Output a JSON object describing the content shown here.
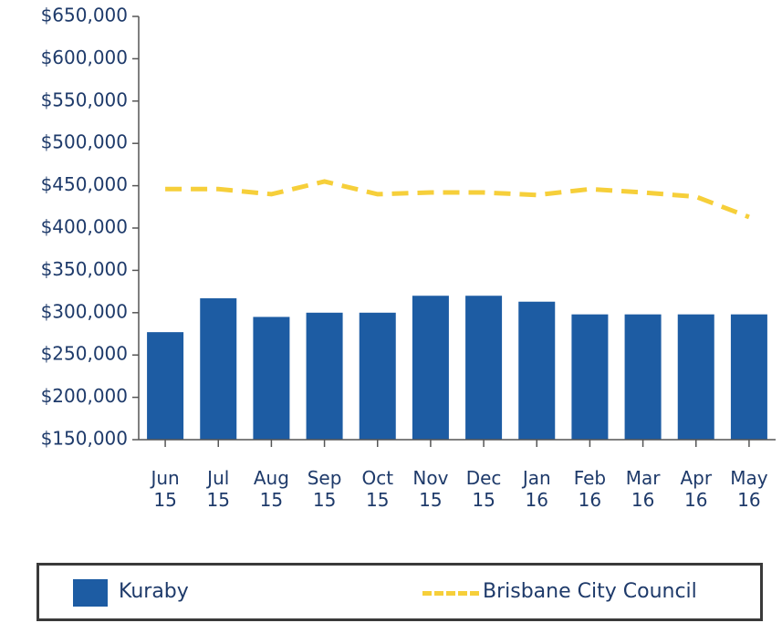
{
  "chart_data": {
    "type": "combo",
    "categories": [
      "Jun 15",
      "Jul 15",
      "Aug 15",
      "Sep 15",
      "Oct 15",
      "Nov 15",
      "Dec 15",
      "Jan 16",
      "Feb 16",
      "Mar 16",
      "Apr 16",
      "May 16"
    ],
    "series": [
      {
        "name": "Kuraby",
        "type": "bar",
        "color": "#1d5ca3",
        "values": [
          277000,
          317000,
          295000,
          300000,
          300000,
          320000,
          320000,
          313000,
          298000,
          298000,
          298000,
          298000
        ]
      },
      {
        "name": "Brisbane City Council",
        "type": "line",
        "dashed": true,
        "color": "#f6cf3a",
        "values": [
          446000,
          446000,
          440000,
          455000,
          440000,
          442000,
          442000,
          439000,
          446000,
          442000,
          437000,
          413000
        ]
      }
    ],
    "ylim": [
      150000,
      650000
    ],
    "yticks": [
      {
        "value": 150000,
        "label": "$150,000"
      },
      {
        "value": 200000,
        "label": "$200,000"
      },
      {
        "value": 250000,
        "label": "$250,000"
      },
      {
        "value": 300000,
        "label": "$300,000"
      },
      {
        "value": 350000,
        "label": "$350,000"
      },
      {
        "value": 400000,
        "label": "$400,000"
      },
      {
        "value": 450000,
        "label": "$450,000"
      },
      {
        "value": 500000,
        "label": "$500,000"
      },
      {
        "value": 550000,
        "label": "$550,000"
      },
      {
        "value": 600000,
        "label": "$600,000"
      },
      {
        "value": 650000,
        "label": "$650,000"
      }
    ],
    "legend": "bottom"
  }
}
